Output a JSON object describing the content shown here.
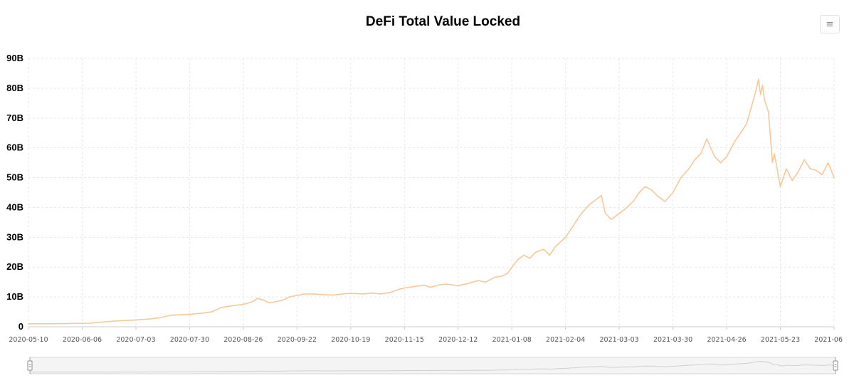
{
  "header": {
    "title": "DeFi Total Value Locked",
    "menu_icon": "hamburger-menu-icon",
    "menu_glyph": "≡"
  },
  "zoom_slider": {
    "start": 0.0,
    "end": 1.0
  },
  "colors": {
    "line": "#f6c89a",
    "grid": "#e8e8e8",
    "axis": "#cccccc",
    "slider_border": "#d6d6d6",
    "slider_fill": "#f4f4f4"
  },
  "chart_data": {
    "type": "line",
    "title": "DeFi Total Value Locked",
    "xlabel": "",
    "ylabel": "",
    "x_range": [
      "2020-05-10",
      "2021-06-19"
    ],
    "ylim": [
      0,
      90
    ],
    "y_unit": "B",
    "y_ticks": [
      "0",
      "10B",
      "20B",
      "30B",
      "40B",
      "50B",
      "60B",
      "70B",
      "80B",
      "90B"
    ],
    "x_ticks": [
      "2020-05-10",
      "2020-06-06",
      "2020-07-03",
      "2020-07-30",
      "2020-08-26",
      "2020-09-22",
      "2020-10-19",
      "2020-11-15",
      "2020-12-12",
      "2021-01-08",
      "2021-02-04",
      "2021-03-03",
      "2021-03-30",
      "2021-04-26",
      "2021-05-23",
      "2021-06"
    ],
    "grid": true,
    "legend": "none",
    "series": [
      {
        "points": [
          [
            "2020-05-10",
            1.0
          ],
          [
            "2020-05-20",
            1.0
          ],
          [
            "2020-06-01",
            1.1
          ],
          [
            "2020-06-10",
            1.2
          ],
          [
            "2020-06-15",
            1.5
          ],
          [
            "2020-06-20",
            1.8
          ],
          [
            "2020-06-25",
            2.0
          ],
          [
            "2020-07-03",
            2.3
          ],
          [
            "2020-07-10",
            2.6
          ],
          [
            "2020-07-15",
            3.0
          ],
          [
            "2020-07-20",
            3.8
          ],
          [
            "2020-07-25",
            4.0
          ],
          [
            "2020-07-30",
            4.2
          ],
          [
            "2020-08-05",
            4.5
          ],
          [
            "2020-08-10",
            5.0
          ],
          [
            "2020-08-15",
            6.5
          ],
          [
            "2020-08-20",
            7.0
          ],
          [
            "2020-08-26",
            7.5
          ],
          [
            "2020-08-31",
            8.5
          ],
          [
            "2020-09-02",
            9.5
          ],
          [
            "2020-09-05",
            9.0
          ],
          [
            "2020-09-08",
            8.0
          ],
          [
            "2020-09-12",
            8.5
          ],
          [
            "2020-09-15",
            9.0
          ],
          [
            "2020-09-18",
            10.0
          ],
          [
            "2020-09-22",
            10.5
          ],
          [
            "2020-09-26",
            11.0
          ],
          [
            "2020-10-01",
            11.0
          ],
          [
            "2020-10-05",
            10.8
          ],
          [
            "2020-10-10",
            10.6
          ],
          [
            "2020-10-15",
            11.0
          ],
          [
            "2020-10-19",
            11.2
          ],
          [
            "2020-10-25",
            11.0
          ],
          [
            "2020-10-30",
            11.3
          ],
          [
            "2020-11-03",
            11.0
          ],
          [
            "2020-11-08",
            11.5
          ],
          [
            "2020-11-12",
            12.5
          ],
          [
            "2020-11-15",
            13.0
          ],
          [
            "2020-11-20",
            13.5
          ],
          [
            "2020-11-25",
            14.0
          ],
          [
            "2020-11-28",
            13.2
          ],
          [
            "2020-12-02",
            14.0
          ],
          [
            "2020-12-06",
            14.3
          ],
          [
            "2020-12-12",
            13.8
          ],
          [
            "2020-12-17",
            14.5
          ],
          [
            "2020-12-22",
            15.5
          ],
          [
            "2020-12-26",
            15.0
          ],
          [
            "2020-12-30",
            16.5
          ],
          [
            "2021-01-03",
            17.0
          ],
          [
            "2021-01-06",
            18.0
          ],
          [
            "2021-01-08",
            20.0
          ],
          [
            "2021-01-11",
            22.5
          ],
          [
            "2021-01-14",
            24.0
          ],
          [
            "2021-01-17",
            23.0
          ],
          [
            "2021-01-20",
            25.0
          ],
          [
            "2021-01-24",
            26.0
          ],
          [
            "2021-01-27",
            24.0
          ],
          [
            "2021-01-30",
            27.0
          ],
          [
            "2021-02-04",
            30.0
          ],
          [
            "2021-02-08",
            34.0
          ],
          [
            "2021-02-12",
            38.0
          ],
          [
            "2021-02-16",
            41.0
          ],
          [
            "2021-02-20",
            43.0
          ],
          [
            "2021-02-22",
            44.0
          ],
          [
            "2021-02-24",
            38.0
          ],
          [
            "2021-02-27",
            36.0
          ],
          [
            "2021-03-03",
            38.0
          ],
          [
            "2021-03-06",
            39.5
          ],
          [
            "2021-03-10",
            42.0
          ],
          [
            "2021-03-13",
            45.0
          ],
          [
            "2021-03-16",
            47.0
          ],
          [
            "2021-03-19",
            46.0
          ],
          [
            "2021-03-22",
            44.0
          ],
          [
            "2021-03-26",
            42.0
          ],
          [
            "2021-03-30",
            45.0
          ],
          [
            "2021-04-03",
            50.0
          ],
          [
            "2021-04-07",
            53.0
          ],
          [
            "2021-04-10",
            56.0
          ],
          [
            "2021-04-13",
            58.0
          ],
          [
            "2021-04-16",
            63.0
          ],
          [
            "2021-04-18",
            60.0
          ],
          [
            "2021-04-20",
            57.0
          ],
          [
            "2021-04-23",
            55.0
          ],
          [
            "2021-04-26",
            57.0
          ],
          [
            "2021-04-30",
            62.0
          ],
          [
            "2021-05-03",
            65.0
          ],
          [
            "2021-05-06",
            68.0
          ],
          [
            "2021-05-09",
            75.0
          ],
          [
            "2021-05-11",
            80.0
          ],
          [
            "2021-05-12",
            83.0
          ],
          [
            "2021-05-13",
            78.0
          ],
          [
            "2021-05-14",
            81.0
          ],
          [
            "2021-05-15",
            76.0
          ],
          [
            "2021-05-17",
            72.0
          ],
          [
            "2021-05-19",
            55.0
          ],
          [
            "2021-05-20",
            58.0
          ],
          [
            "2021-05-23",
            47.0
          ],
          [
            "2021-05-26",
            53.0
          ],
          [
            "2021-05-29",
            49.0
          ],
          [
            "2021-06-01",
            52.0
          ],
          [
            "2021-06-04",
            56.0
          ],
          [
            "2021-06-07",
            53.0
          ],
          [
            "2021-06-10",
            52.5
          ],
          [
            "2021-06-13",
            51.0
          ],
          [
            "2021-06-16",
            55.0
          ],
          [
            "2021-06-19",
            50.0
          ]
        ]
      }
    ]
  }
}
